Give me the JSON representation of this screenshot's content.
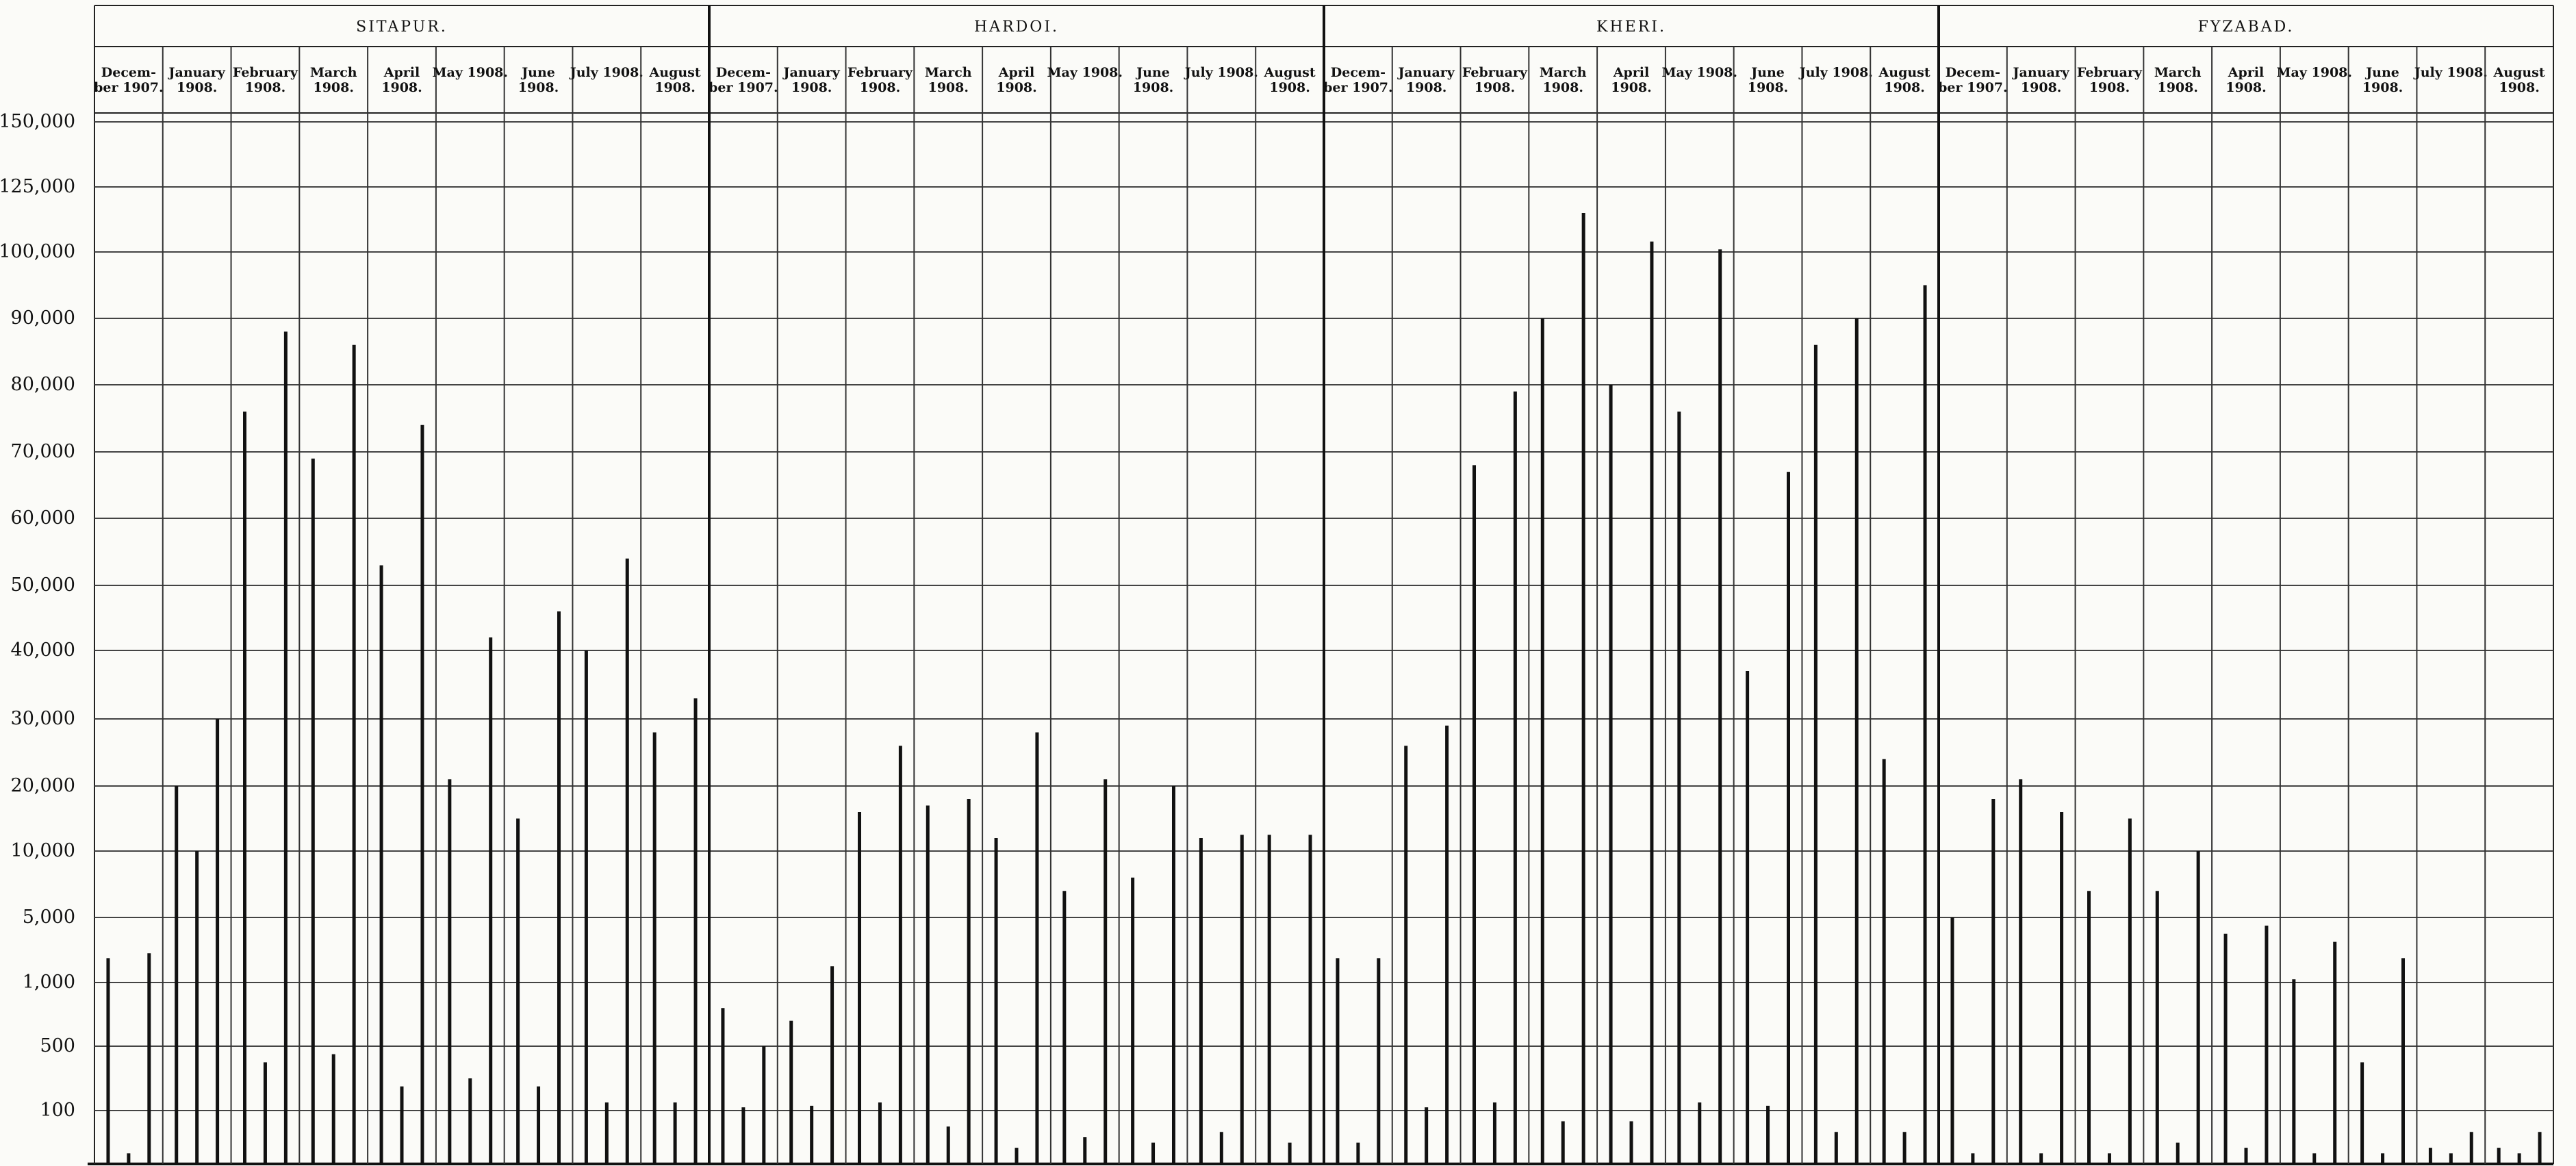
{
  "chart_data": {
    "type": "bar",
    "title": "",
    "xlabel": "",
    "ylabel": "",
    "y_ticks": [
      "150,000",
      "125,000",
      "100,000",
      "90,000",
      "80,000",
      "70,000",
      "60,000",
      "50,000",
      "40,000",
      "30,000",
      "20,000",
      "10,000",
      "5,000",
      "1,000",
      "500",
      "100"
    ],
    "y_tick_values": [
      150000,
      125000,
      100000,
      90000,
      80000,
      70000,
      60000,
      50000,
      40000,
      30000,
      20000,
      10000,
      5000,
      1000,
      500,
      100
    ],
    "y_scale": "piecewise (non-linear) scale following the printed ticks",
    "grid": true,
    "legend": "none",
    "districts": [
      {
        "name": "SITAPUR.",
        "months": [
          "Decem-\nber 1907.",
          "January\n1908.",
          "February\n1908.",
          "March\n1908.",
          "April\n1908.",
          "May 1908.",
          "June\n1908.",
          "July 1908.",
          "August\n1908."
        ],
        "values": [
          [
            2500,
            20,
            2800
          ],
          [
            20000,
            10000,
            30000
          ],
          [
            76000,
            400,
            88000
          ],
          [
            69000,
            450,
            86000
          ],
          [
            53000,
            250,
            74000
          ],
          [
            21000,
            300,
            42000
          ],
          [
            15000,
            250,
            46000
          ],
          [
            40000,
            150,
            54000
          ],
          [
            28000,
            150,
            33000
          ]
        ]
      },
      {
        "name": "HARDOI.",
        "months": [
          "Decem-\nber 1907.",
          "January\n1908.",
          "February\n1908.",
          "March\n1908.",
          "April\n1908.",
          "May 1908.",
          "June\n1908.",
          "July 1908.",
          "August\n1908."
        ],
        "values": [
          [
            800,
            120,
            500
          ],
          [
            700,
            130,
            2000
          ],
          [
            16000,
            150,
            26000
          ],
          [
            17000,
            70,
            18000
          ],
          [
            12000,
            30,
            28000
          ],
          [
            7000,
            50,
            21000
          ],
          [
            8000,
            40,
            20000
          ],
          [
            12000,
            60,
            12500
          ],
          [
            12500,
            40,
            12500
          ]
        ]
      },
      {
        "name": "KHERI.",
        "months": [
          "Decem-\nber 1907.",
          "January\n1908.",
          "February\n1908.",
          "March\n1908.",
          "April\n1908.",
          "May 1908.",
          "June\n1908.",
          "July 1908.",
          "August\n1908."
        ],
        "values": [
          [
            2500,
            40,
            2500
          ],
          [
            26000,
            120,
            29000
          ],
          [
            68000,
            150,
            79000
          ],
          [
            90000,
            80,
            115000
          ],
          [
            80000,
            80,
            104000
          ],
          [
            76000,
            150,
            101000
          ],
          [
            37000,
            130,
            67000
          ],
          [
            86000,
            60,
            90000
          ],
          [
            24000,
            60,
            95000
          ]
        ]
      },
      {
        "name": "FYZABAD.",
        "months": [
          "Decem-\nber 1907.",
          "January\n1908.",
          "February\n1908.",
          "March\n1908.",
          "April\n1908.",
          "May 1908.",
          "June\n1908.",
          "July 1908.",
          "August\n1908."
        ],
        "values": [
          [
            5000,
            20,
            18000
          ],
          [
            21000,
            20,
            16000
          ],
          [
            7000,
            20,
            15000
          ],
          [
            7000,
            40,
            10000
          ],
          [
            4000,
            30,
            4500
          ],
          [
            1200,
            20,
            3500
          ],
          [
            400,
            20,
            2500
          ],
          [
            30,
            20,
            60
          ],
          [
            30,
            20,
            60
          ]
        ]
      }
    ]
  }
}
